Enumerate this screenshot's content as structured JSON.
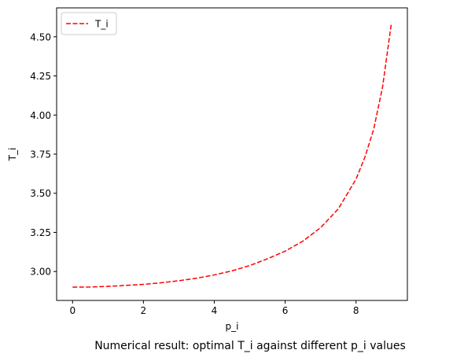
{
  "chart_data": {
    "type": "line",
    "title": "",
    "caption": "Numerical result: optimal T_i against different p_i values",
    "xlabel": "p_i",
    "ylabel": "T_i",
    "xlim": [
      -0.45,
      9.45
    ],
    "ylim": [
      2.815,
      4.685
    ],
    "xticks": [
      0,
      2,
      4,
      6,
      8
    ],
    "xtick_labels": [
      "0",
      "2",
      "4",
      "6",
      "8"
    ],
    "yticks": [
      3.0,
      3.25,
      3.5,
      3.75,
      4.0,
      4.25,
      4.5
    ],
    "ytick_labels": [
      "3.00",
      "3.25",
      "3.50",
      "3.75",
      "4.00",
      "4.25",
      "4.50"
    ],
    "grid": false,
    "legend": {
      "position": "top-left",
      "entries": [
        "T_i"
      ]
    },
    "series": [
      {
        "name": "T_i",
        "color": "#ff0000",
        "linestyle": "dashed",
        "x": [
          0,
          0.5,
          1,
          1.5,
          2,
          2.5,
          3,
          3.5,
          4,
          4.5,
          5,
          5.5,
          6,
          6.5,
          7,
          7.5,
          8,
          8.25,
          8.5,
          8.75,
          9
        ],
        "y": [
          2.9,
          2.901,
          2.905,
          2.911,
          2.918,
          2.928,
          2.941,
          2.957,
          2.978,
          3.004,
          3.038,
          3.081,
          3.13,
          3.194,
          3.28,
          3.4,
          3.59,
          3.73,
          3.91,
          4.18,
          4.59
        ]
      }
    ]
  }
}
